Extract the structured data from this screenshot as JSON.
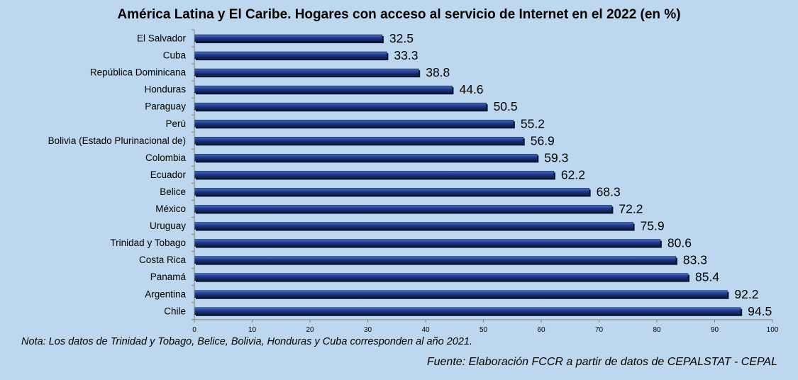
{
  "chart_data": {
    "type": "bar",
    "orientation": "horizontal",
    "title": "América Latina y El Caribe. Hogares con acceso al servicio de Internet en el 2022 (en %)",
    "categories": [
      "El Salvador",
      "Cuba",
      "República Dominicana",
      "Honduras",
      "Paraguay",
      "Perú",
      "Bolivia (Estado Plurinacional de)",
      "Colombia",
      "Ecuador",
      "Belice",
      "México",
      "Uruguay",
      "Trinidad y Tobago",
      "Costa Rica",
      "Panamá",
      "Argentina",
      "Chile"
    ],
    "values": [
      32.5,
      33.3,
      38.8,
      44.6,
      50.5,
      55.2,
      56.9,
      59.3,
      62.2,
      68.3,
      72.2,
      75.9,
      80.6,
      83.3,
      85.4,
      92.2,
      94.5
    ],
    "value_labels": [
      "32.5",
      "33.3",
      "38.8",
      "44.6",
      "50.5",
      "55.2",
      "56.9",
      "59.3",
      "62.2",
      "68.3",
      "72.2",
      "75.9",
      "80.6",
      "83.3",
      "85.4",
      "92.2",
      "94.5"
    ],
    "xlim": [
      0,
      100
    ],
    "x_ticks": [
      0,
      10,
      20,
      30,
      40,
      50,
      60,
      70,
      80,
      90,
      100
    ],
    "x_tick_labels": [
      "0",
      "10",
      "20",
      "30",
      "40",
      "50",
      "60",
      "70",
      "80",
      "90",
      "100"
    ],
    "grid": false,
    "legend": "none",
    "bar_color": "#1f3a8a"
  },
  "note": "Nota: Los datos de Trinidad y Tobago, Belice, Bolivia, Honduras y Cuba corresponden al año 2021.",
  "source": "Fuente: Elaboración FCCR a partir de datos de CEPALSTAT - CEPAL",
  "colors": {
    "background": "#bdd7ee",
    "bar_dark": "#0f1f4f",
    "bar_mid": "#1f3a8a",
    "bar_light": "#3f5fb8",
    "axis": "#7f7f7f"
  }
}
